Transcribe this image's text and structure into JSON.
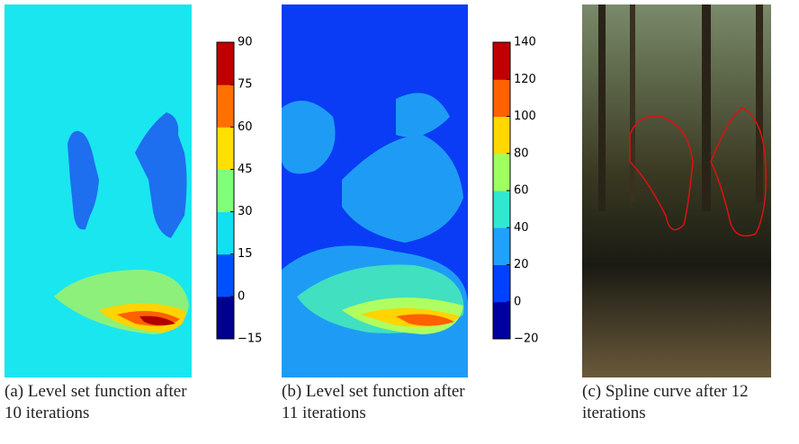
{
  "figure": {
    "panels": [
      {
        "caption": "(a) Level set function after 10 iterations",
        "colorbar": {
          "lim": [
            -15,
            90
          ],
          "ticks": [
            90,
            75,
            60,
            45,
            30,
            15,
            0,
            {
              "value": -15,
              "label": "−15"
            }
          ],
          "colors": [
            "#00008f",
            "#0050ff",
            "#10e0f0",
            "#80ff7a",
            "#ffe000",
            "#ff7000",
            "#c00000"
          ]
        }
      },
      {
        "caption": "(b) Level set function after 11 iterations",
        "colorbar": {
          "lim": [
            -20,
            140
          ],
          "ticks": [
            140,
            120,
            100,
            80,
            60,
            40,
            20,
            0,
            {
              "value": -20,
              "label": "−20"
            }
          ],
          "colors": [
            "#0000a0",
            "#0040ff",
            "#20a0ff",
            "#30e8d0",
            "#a0ff60",
            "#ffd800",
            "#ff6000",
            "#c00000"
          ]
        }
      },
      {
        "caption": "(c) Spline curve after 12 iterations"
      }
    ]
  }
}
